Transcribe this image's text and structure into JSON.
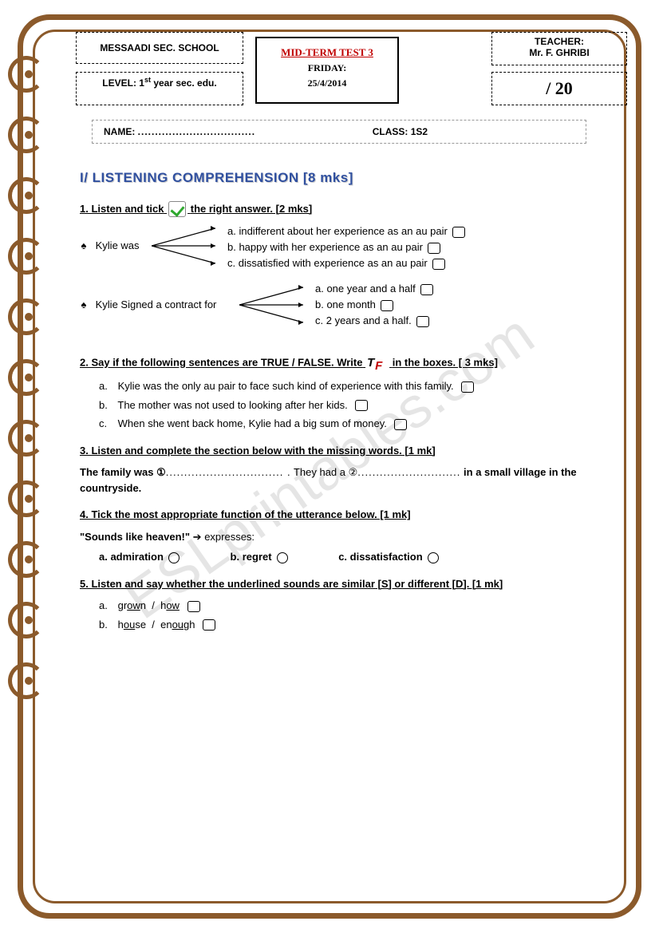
{
  "frame": {
    "border_color": "#8b5a2b",
    "ring_count": 11,
    "ring_spacing": 76
  },
  "header": {
    "school": "MESSAADI SEC. SCHOOL",
    "level_label": "LEVEL:",
    "level_value": "1ˢᵗ year sec. edu.",
    "test_title": "MID-TERM TEST 3",
    "day": "FRIDAY:",
    "date": "25/4/2014",
    "teacher_label": "TEACHER:",
    "teacher_name": "Mr. F. GHRIBI",
    "score": "/ 20",
    "name_label": "NAME:",
    "name_dots": "..................................",
    "class_label": "CLASS:",
    "class_value": "1S2"
  },
  "section1": {
    "title": "I/ LISTENING COMPREHENSION [8 mks]"
  },
  "q1": {
    "title_before": "1. Listen and tick",
    "title_after": "the right answer. [2 mks]",
    "item1_lead": "Kylie was",
    "item1_opts": [
      "a. indifferent about her experience as an au pair",
      "b. happy with her experience as an au pair",
      "c. dissatisfied with experience as an au pair"
    ],
    "item2_lead": "Kylie Signed a contract for",
    "item2_opts": [
      "a. one year and a half",
      "b. one month",
      "c. 2 years and a half."
    ]
  },
  "q2": {
    "title_before": "2. Say if the following sentences are TRUE / FALSE. Write",
    "title_after": "in the boxes. [ 3 mks]",
    "items": [
      "Kylie was the only au pair to face such kind of experience with this family.",
      "The mother was not used to looking after her kids.",
      "When she went back home, Kylie had a big sum of money."
    ],
    "labels": [
      "a.",
      "b.",
      "c."
    ]
  },
  "q3": {
    "title": "3. Listen and complete the section below with the missing words. [1 mk]",
    "text_a": "The family was ①",
    "dots1": "................................ .",
    "text_b": "They had a ②",
    "dots2": "............................",
    "text_c": "in a small village in the countryside."
  },
  "q4": {
    "title": "4. Tick the most appropriate function of the utterance below. [1 mk]",
    "utterance": "\"Sounds like heaven!\"",
    "arrow": "➔",
    "expresses": "expresses:",
    "opts": [
      "a. admiration",
      "b. regret",
      "c. dissatisfaction"
    ]
  },
  "q5": {
    "title": "5. Listen and say whether the underlined sounds are similar [S] or different [D]. [1 mk]",
    "items": [
      {
        "label": "a.",
        "w1a": "gr",
        "w1u": "ow",
        "w1b": "n",
        "sep": "/",
        "w2a": "h",
        "w2u": "ow",
        "w2b": ""
      },
      {
        "label": "b.",
        "w1a": "h",
        "w1u": "ou",
        "w1b": "se",
        "sep": "/",
        "w2a": "en",
        "w2u": "ou",
        "w2b": "gh"
      }
    ]
  },
  "watermark": "ESLprintables.com"
}
